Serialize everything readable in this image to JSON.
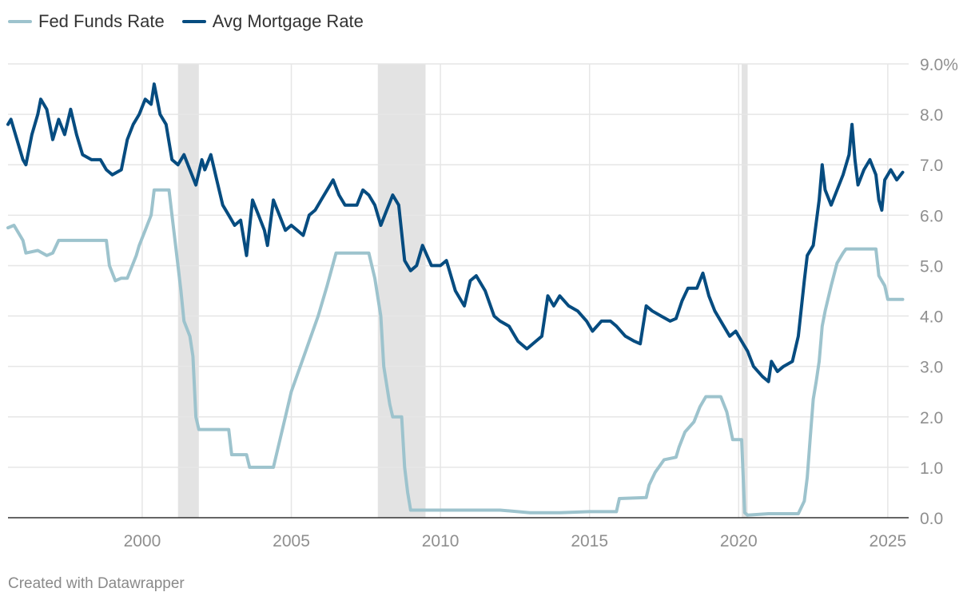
{
  "chart_data": {
    "type": "line",
    "title": "",
    "xlabel": "",
    "ylabel": "",
    "xlim": [
      1995.5,
      2025.7
    ],
    "ylim": [
      0,
      9
    ],
    "x_ticks": [
      2000,
      2005,
      2010,
      2015,
      2020,
      2025
    ],
    "x_tick_labels": [
      "2000",
      "2005",
      "2010",
      "2015",
      "2020",
      "2025"
    ],
    "y_ticks": [
      0,
      1,
      2,
      3,
      4,
      5,
      6,
      7,
      8,
      9
    ],
    "y_tick_labels": [
      "0.0",
      "1.0",
      "2.0",
      "3.0",
      "4.0",
      "5.0",
      "6.0",
      "7.0",
      "8.0",
      "9.0%"
    ],
    "grid": true,
    "legend_position": "top-left",
    "recessions": [
      {
        "start": 2001.2,
        "end": 2001.9
      },
      {
        "start": 2007.9,
        "end": 2009.5
      },
      {
        "start": 2020.1,
        "end": 2020.3
      }
    ],
    "series": [
      {
        "name": "Fed Funds Rate",
        "color": "#9dc3cd",
        "points": [
          [
            1995.5,
            5.75
          ],
          [
            1995.7,
            5.8
          ],
          [
            1996.0,
            5.5
          ],
          [
            1996.1,
            5.25
          ],
          [
            1996.5,
            5.3
          ],
          [
            1996.8,
            5.2
          ],
          [
            1997.0,
            5.25
          ],
          [
            1997.2,
            5.5
          ],
          [
            1997.7,
            5.5
          ],
          [
            1998.0,
            5.5
          ],
          [
            1998.4,
            5.5
          ],
          [
            1998.8,
            5.5
          ],
          [
            1998.9,
            5.0
          ],
          [
            1999.1,
            4.7
          ],
          [
            1999.3,
            4.75
          ],
          [
            1999.5,
            4.75
          ],
          [
            1999.8,
            5.2
          ],
          [
            1999.9,
            5.4
          ],
          [
            2000.1,
            5.7
          ],
          [
            2000.3,
            6.0
          ],
          [
            2000.4,
            6.5
          ],
          [
            2000.9,
            6.5
          ],
          [
            2001.0,
            6.0
          ],
          [
            2001.2,
            5.0
          ],
          [
            2001.3,
            4.5
          ],
          [
            2001.4,
            3.9
          ],
          [
            2001.6,
            3.6
          ],
          [
            2001.7,
            3.2
          ],
          [
            2001.8,
            2.0
          ],
          [
            2001.9,
            1.75
          ],
          [
            2002.0,
            1.75
          ],
          [
            2002.9,
            1.75
          ],
          [
            2003.0,
            1.25
          ],
          [
            2003.5,
            1.25
          ],
          [
            2003.6,
            1.0
          ],
          [
            2004.4,
            1.0
          ],
          [
            2004.6,
            1.5
          ],
          [
            2004.8,
            2.0
          ],
          [
            2005.0,
            2.5
          ],
          [
            2005.3,
            3.0
          ],
          [
            2005.6,
            3.5
          ],
          [
            2005.9,
            4.0
          ],
          [
            2006.2,
            4.6
          ],
          [
            2006.5,
            5.25
          ],
          [
            2007.6,
            5.25
          ],
          [
            2007.8,
            4.75
          ],
          [
            2008.0,
            4.0
          ],
          [
            2008.1,
            3.0
          ],
          [
            2008.3,
            2.25
          ],
          [
            2008.4,
            2.0
          ],
          [
            2008.7,
            2.0
          ],
          [
            2008.8,
            1.0
          ],
          [
            2008.9,
            0.5
          ],
          [
            2009.0,
            0.15
          ],
          [
            2010.0,
            0.15
          ],
          [
            2011.0,
            0.15
          ],
          [
            2012.0,
            0.15
          ],
          [
            2013.0,
            0.1
          ],
          [
            2014.0,
            0.1
          ],
          [
            2015.0,
            0.12
          ],
          [
            2015.9,
            0.12
          ],
          [
            2016.0,
            0.38
          ],
          [
            2016.9,
            0.4
          ],
          [
            2017.0,
            0.65
          ],
          [
            2017.2,
            0.9
          ],
          [
            2017.5,
            1.15
          ],
          [
            2017.9,
            1.2
          ],
          [
            2018.0,
            1.4
          ],
          [
            2018.2,
            1.7
          ],
          [
            2018.5,
            1.9
          ],
          [
            2018.7,
            2.2
          ],
          [
            2018.9,
            2.4
          ],
          [
            2019.4,
            2.4
          ],
          [
            2019.6,
            2.1
          ],
          [
            2019.8,
            1.55
          ],
          [
            2020.1,
            1.55
          ],
          [
            2020.2,
            0.1
          ],
          [
            2020.3,
            0.05
          ],
          [
            2021.0,
            0.08
          ],
          [
            2022.0,
            0.08
          ],
          [
            2022.2,
            0.33
          ],
          [
            2022.3,
            0.8
          ],
          [
            2022.4,
            1.6
          ],
          [
            2022.5,
            2.35
          ],
          [
            2022.6,
            2.7
          ],
          [
            2022.7,
            3.1
          ],
          [
            2022.8,
            3.8
          ],
          [
            2022.9,
            4.1
          ],
          [
            2023.1,
            4.6
          ],
          [
            2023.3,
            5.05
          ],
          [
            2023.5,
            5.25
          ],
          [
            2023.6,
            5.33
          ],
          [
            2024.6,
            5.33
          ],
          [
            2024.7,
            4.8
          ],
          [
            2024.9,
            4.6
          ],
          [
            2025.0,
            4.33
          ],
          [
            2025.5,
            4.33
          ]
        ]
      },
      {
        "name": "Avg Mortgage Rate",
        "color": "#064c80",
        "points": [
          [
            1995.5,
            7.8
          ],
          [
            1995.6,
            7.9
          ],
          [
            1995.8,
            7.5
          ],
          [
            1996.0,
            7.1
          ],
          [
            1996.1,
            7.0
          ],
          [
            1996.3,
            7.6
          ],
          [
            1996.5,
            8.0
          ],
          [
            1996.6,
            8.3
          ],
          [
            1996.8,
            8.1
          ],
          [
            1997.0,
            7.5
          ],
          [
            1997.2,
            7.9
          ],
          [
            1997.4,
            7.6
          ],
          [
            1997.6,
            8.1
          ],
          [
            1997.8,
            7.6
          ],
          [
            1998.0,
            7.2
          ],
          [
            1998.3,
            7.1
          ],
          [
            1998.6,
            7.1
          ],
          [
            1998.8,
            6.9
          ],
          [
            1999.0,
            6.8
          ],
          [
            1999.3,
            6.9
          ],
          [
            1999.5,
            7.5
          ],
          [
            1999.7,
            7.8
          ],
          [
            1999.9,
            8.0
          ],
          [
            2000.1,
            8.3
          ],
          [
            2000.3,
            8.2
          ],
          [
            2000.4,
            8.6
          ],
          [
            2000.6,
            8.0
          ],
          [
            2000.8,
            7.8
          ],
          [
            2001.0,
            7.1
          ],
          [
            2001.2,
            7.0
          ],
          [
            2001.4,
            7.2
          ],
          [
            2001.6,
            6.9
          ],
          [
            2001.8,
            6.6
          ],
          [
            2002.0,
            7.1
          ],
          [
            2002.1,
            6.9
          ],
          [
            2002.3,
            7.2
          ],
          [
            2002.5,
            6.7
          ],
          [
            2002.7,
            6.2
          ],
          [
            2002.9,
            6.0
          ],
          [
            2003.1,
            5.8
          ],
          [
            2003.3,
            5.9
          ],
          [
            2003.5,
            5.2
          ],
          [
            2003.7,
            6.3
          ],
          [
            2003.9,
            6.0
          ],
          [
            2004.1,
            5.7
          ],
          [
            2004.2,
            5.4
          ],
          [
            2004.4,
            6.3
          ],
          [
            2004.6,
            6.0
          ],
          [
            2004.8,
            5.7
          ],
          [
            2005.0,
            5.8
          ],
          [
            2005.2,
            5.7
          ],
          [
            2005.4,
            5.6
          ],
          [
            2005.6,
            6.0
          ],
          [
            2005.8,
            6.1
          ],
          [
            2006.0,
            6.3
          ],
          [
            2006.2,
            6.5
          ],
          [
            2006.4,
            6.7
          ],
          [
            2006.6,
            6.4
          ],
          [
            2006.8,
            6.2
          ],
          [
            2007.0,
            6.2
          ],
          [
            2007.2,
            6.2
          ],
          [
            2007.4,
            6.5
          ],
          [
            2007.6,
            6.4
          ],
          [
            2007.8,
            6.2
          ],
          [
            2008.0,
            5.8
          ],
          [
            2008.2,
            6.1
          ],
          [
            2008.4,
            6.4
          ],
          [
            2008.6,
            6.2
          ],
          [
            2008.8,
            5.1
          ],
          [
            2009.0,
            4.9
          ],
          [
            2009.2,
            5.0
          ],
          [
            2009.4,
            5.4
          ],
          [
            2009.7,
            5.0
          ],
          [
            2010.0,
            5.0
          ],
          [
            2010.2,
            5.1
          ],
          [
            2010.5,
            4.5
          ],
          [
            2010.8,
            4.2
          ],
          [
            2011.0,
            4.7
          ],
          [
            2011.2,
            4.8
          ],
          [
            2011.5,
            4.5
          ],
          [
            2011.8,
            4.0
          ],
          [
            2012.0,
            3.9
          ],
          [
            2012.3,
            3.8
          ],
          [
            2012.6,
            3.5
          ],
          [
            2012.9,
            3.35
          ],
          [
            2013.2,
            3.5
          ],
          [
            2013.4,
            3.6
          ],
          [
            2013.6,
            4.4
          ],
          [
            2013.8,
            4.2
          ],
          [
            2014.0,
            4.4
          ],
          [
            2014.3,
            4.2
          ],
          [
            2014.6,
            4.1
          ],
          [
            2014.9,
            3.9
          ],
          [
            2015.1,
            3.7
          ],
          [
            2015.4,
            3.9
          ],
          [
            2015.7,
            3.9
          ],
          [
            2015.9,
            3.8
          ],
          [
            2016.2,
            3.6
          ],
          [
            2016.5,
            3.5
          ],
          [
            2016.7,
            3.45
          ],
          [
            2016.9,
            4.2
          ],
          [
            2017.1,
            4.1
          ],
          [
            2017.4,
            4.0
          ],
          [
            2017.7,
            3.9
          ],
          [
            2017.9,
            3.95
          ],
          [
            2018.1,
            4.3
          ],
          [
            2018.3,
            4.55
          ],
          [
            2018.6,
            4.55
          ],
          [
            2018.8,
            4.85
          ],
          [
            2019.0,
            4.4
          ],
          [
            2019.2,
            4.1
          ],
          [
            2019.5,
            3.8
          ],
          [
            2019.7,
            3.6
          ],
          [
            2019.9,
            3.7
          ],
          [
            2020.1,
            3.5
          ],
          [
            2020.3,
            3.3
          ],
          [
            2020.5,
            3.0
          ],
          [
            2020.8,
            2.8
          ],
          [
            2021.0,
            2.7
          ],
          [
            2021.1,
            3.1
          ],
          [
            2021.3,
            2.9
          ],
          [
            2021.5,
            3.0
          ],
          [
            2021.8,
            3.1
          ],
          [
            2022.0,
            3.6
          ],
          [
            2022.2,
            4.7
          ],
          [
            2022.3,
            5.2
          ],
          [
            2022.5,
            5.4
          ],
          [
            2022.7,
            6.3
          ],
          [
            2022.8,
            7.0
          ],
          [
            2022.9,
            6.5
          ],
          [
            2023.1,
            6.2
          ],
          [
            2023.3,
            6.5
          ],
          [
            2023.5,
            6.8
          ],
          [
            2023.7,
            7.2
          ],
          [
            2023.8,
            7.8
          ],
          [
            2023.9,
            7.1
          ],
          [
            2024.0,
            6.6
          ],
          [
            2024.2,
            6.9
          ],
          [
            2024.4,
            7.1
          ],
          [
            2024.6,
            6.8
          ],
          [
            2024.7,
            6.3
          ],
          [
            2024.8,
            6.1
          ],
          [
            2024.9,
            6.7
          ],
          [
            2025.1,
            6.9
          ],
          [
            2025.3,
            6.7
          ],
          [
            2025.5,
            6.85
          ]
        ]
      }
    ]
  },
  "footer": {
    "credit": "Created with Datawrapper"
  }
}
